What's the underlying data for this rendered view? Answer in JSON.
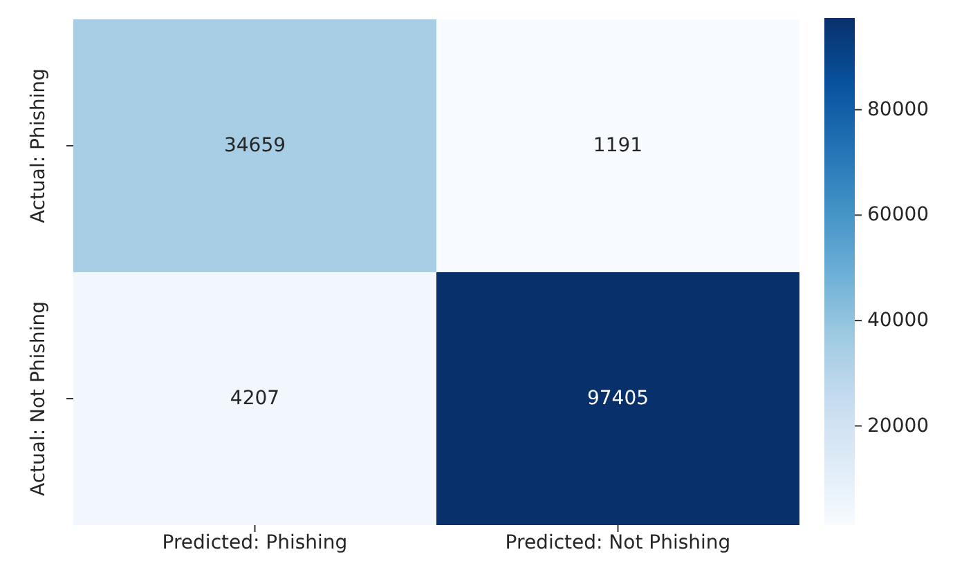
{
  "chart_data": {
    "type": "heatmap",
    "categories": [
      "Predicted: Phishing",
      "Predicted: Not Phishing"
    ],
    "y_categories": [
      "Actual: Phishing",
      "Actual: Not Phishing"
    ],
    "cells": [
      [
        34659,
        1191
      ],
      [
        4207,
        97405
      ]
    ],
    "clim": [
      1191,
      97405
    ],
    "cticks": [
      20000,
      40000,
      60000,
      80000
    ],
    "data_labels": true
  }
}
